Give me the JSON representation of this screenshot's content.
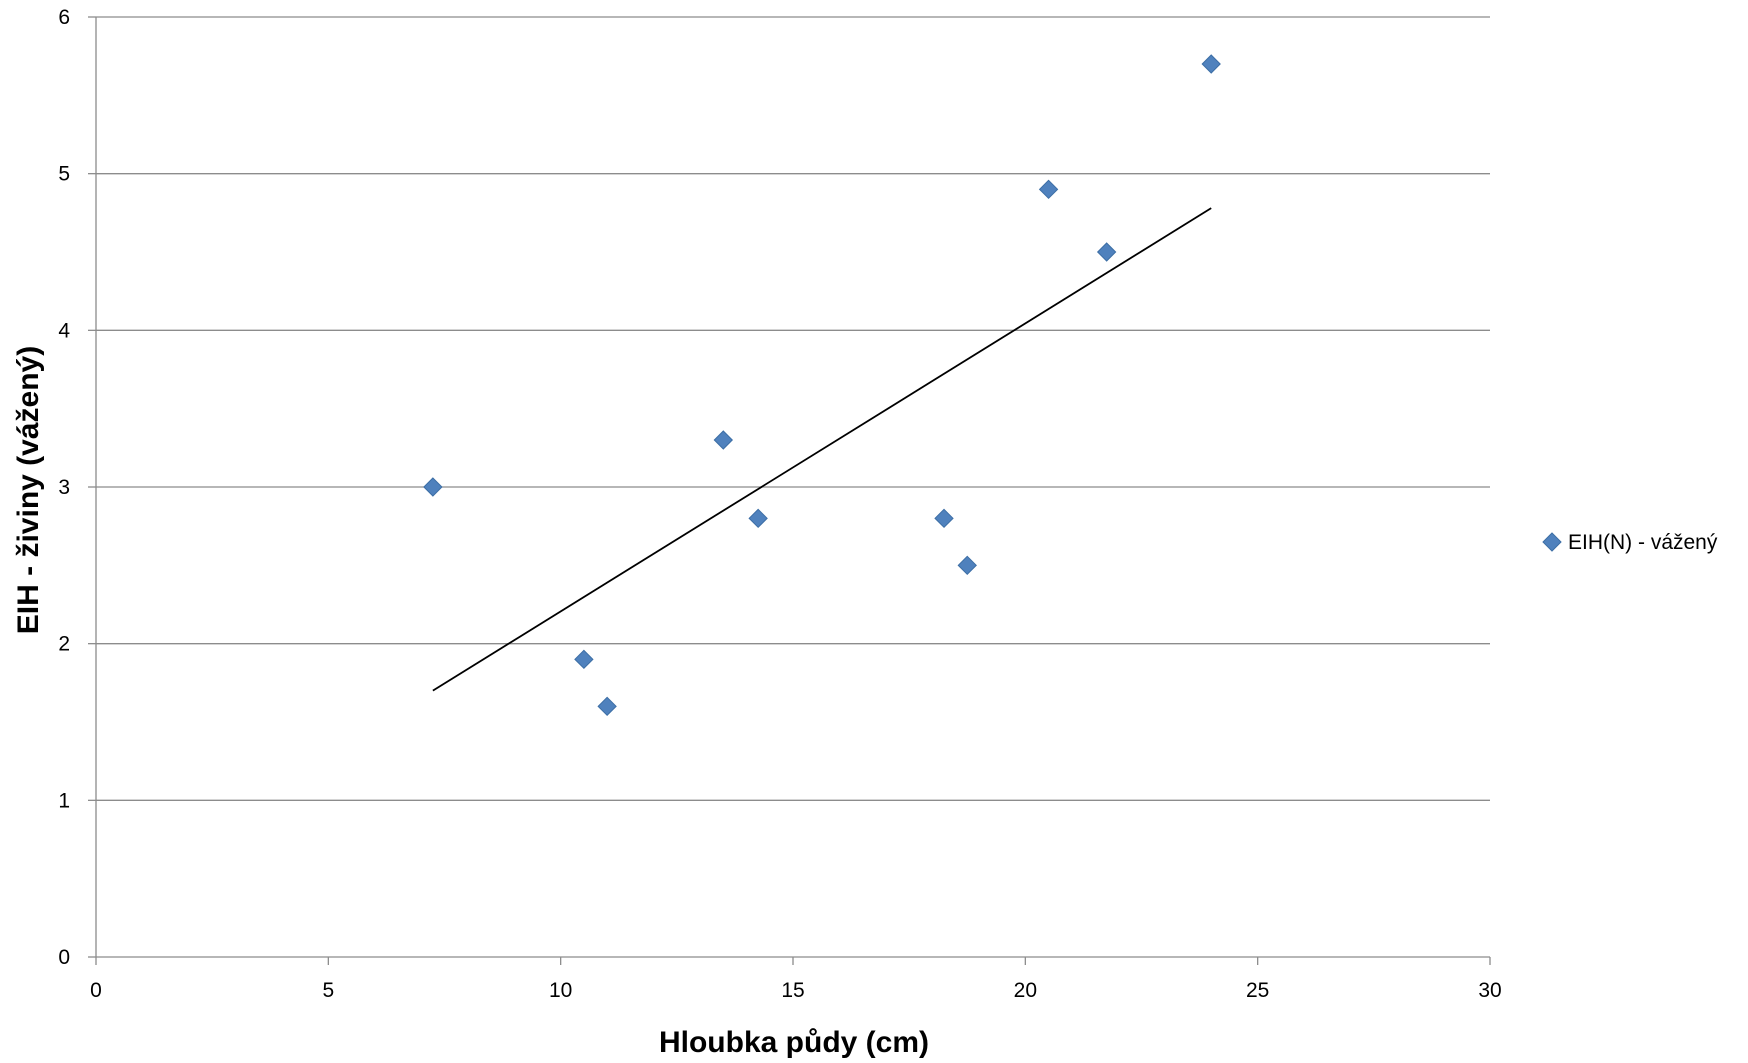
{
  "chart_data": {
    "type": "scatter",
    "title": "",
    "xlabel": "Hloubka půdy (cm)",
    "ylabel": "EIH - živiny (vážený)",
    "xlim": [
      0,
      30
    ],
    "ylim": [
      0,
      6
    ],
    "x_ticks": [
      0,
      5,
      10,
      15,
      20,
      25,
      30
    ],
    "y_ticks": [
      0,
      1,
      2,
      3,
      4,
      5,
      6
    ],
    "grid": "horizontal",
    "legend_position": "right",
    "series": [
      {
        "name": "EIH(N) - vážený",
        "marker": "diamond",
        "color": "#4f81bd",
        "points": [
          {
            "x": 7.25,
            "y": 3.0
          },
          {
            "x": 10.5,
            "y": 1.9
          },
          {
            "x": 11.0,
            "y": 1.6
          },
          {
            "x": 13.5,
            "y": 3.3
          },
          {
            "x": 14.25,
            "y": 2.8
          },
          {
            "x": 18.25,
            "y": 2.8
          },
          {
            "x": 18.75,
            "y": 2.5
          },
          {
            "x": 20.5,
            "y": 4.9
          },
          {
            "x": 21.75,
            "y": 4.5
          },
          {
            "x": 24.0,
            "y": 5.7
          }
        ]
      }
    ],
    "trendline": {
      "type": "linear",
      "color": "#000000",
      "from": {
        "x": 7.25,
        "y": 1.7
      },
      "to": {
        "x": 24.0,
        "y": 4.78
      }
    }
  }
}
